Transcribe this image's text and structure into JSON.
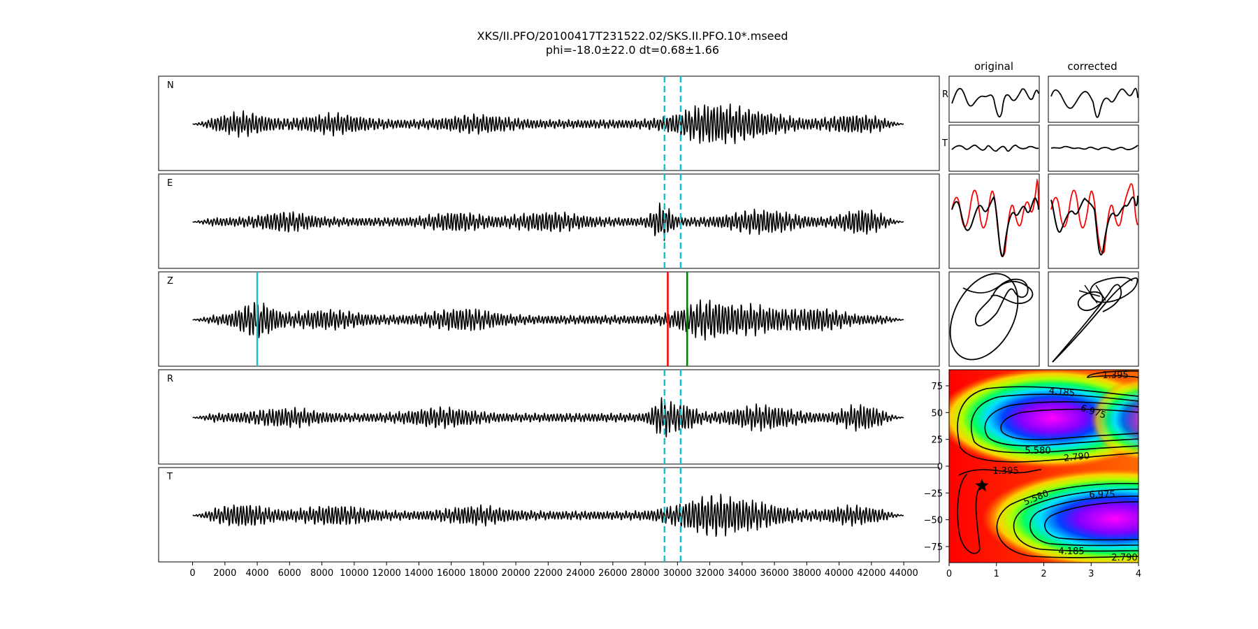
{
  "figure": {
    "title_line1": "XKS/II.PFO/20100417T231522.02/SKS.II.PFO.10*.mseed",
    "title_line2": "phi=-18.0±22.0 dt=0.68±1.66"
  },
  "chart_data": [
    {
      "type": "line",
      "role": "seismogram traces",
      "x_ticks": [
        0,
        2000,
        4000,
        6000,
        8000,
        10000,
        12000,
        14000,
        16000,
        18000,
        20000,
        22000,
        24000,
        26000,
        28000,
        30000,
        32000,
        34000,
        36000,
        38000,
        40000,
        42000,
        44000
      ],
      "xlim": [
        -2100,
        46200
      ],
      "x_data_range": [
        0,
        44000
      ],
      "panels": [
        {
          "label": "N",
          "markers": [
            {
              "x": 29200,
              "color": "#17becf",
              "style": "dashed"
            },
            {
              "x": 30200,
              "color": "#17becf",
              "style": "dashed"
            }
          ]
        },
        {
          "label": "E",
          "markers": [
            {
              "x": 29200,
              "color": "#17becf",
              "style": "dashed"
            },
            {
              "x": 30200,
              "color": "#17becf",
              "style": "dashed"
            }
          ]
        },
        {
          "label": "Z",
          "markers": [
            {
              "x": 4000,
              "color": "#17becf",
              "style": "solid"
            },
            {
              "x": 29400,
              "color": "#ff0000",
              "style": "solid"
            },
            {
              "x": 30600,
              "color": "#008000",
              "style": "solid"
            }
          ]
        },
        {
          "label": "R",
          "markers": [
            {
              "x": 29200,
              "color": "#17becf",
              "style": "dashed"
            },
            {
              "x": 30200,
              "color": "#17becf",
              "style": "dashed"
            }
          ]
        },
        {
          "label": "T",
          "markers": [
            {
              "x": 29200,
              "color": "#17becf",
              "style": "dashed"
            },
            {
              "x": 30200,
              "color": "#17becf",
              "style": "dashed"
            }
          ]
        }
      ]
    },
    {
      "type": "line",
      "role": "window comparison",
      "column_titles": [
        "original",
        "corrected"
      ],
      "row_labels": [
        "R",
        "T"
      ],
      "overlay_colors": {
        "primary": "#000000",
        "secondary": "#ff0000"
      }
    },
    {
      "type": "heatmap",
      "role": "error surface",
      "xlim": [
        0,
        4
      ],
      "ylim": [
        -90,
        90
      ],
      "x_ticks": [
        0,
        1,
        2,
        3,
        4
      ],
      "y_ticks": [
        75,
        50,
        25,
        0,
        -25,
        -50,
        -75
      ],
      "colormap": "gist_rainbow",
      "contour_labels": [
        "1.395",
        "4.185",
        "6.975",
        "5.580",
        "2.790",
        "1.395",
        "5.580",
        "6.975",
        "4.185",
        "2.790"
      ],
      "best_fit": {
        "dt": 0.68,
        "phi": -18.0,
        "marker": "star"
      }
    }
  ]
}
